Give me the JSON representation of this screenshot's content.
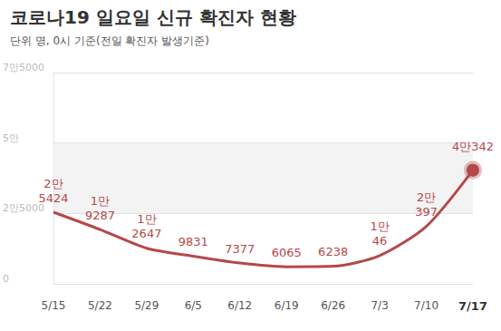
{
  "chart_data": {
    "type": "line",
    "title": "코로나19 일요일 신규 확진자 현황",
    "subtitle": "단위 명, 0시 기준(전일 확진자 발생기준)",
    "categories": [
      "5/15",
      "5/22",
      "5/29",
      "6/5",
      "6/12",
      "6/19",
      "6/26",
      "7/3",
      "7/10",
      "7/17"
    ],
    "values": [
      25424,
      19287,
      12647,
      9831,
      7377,
      6065,
      6238,
      10046,
      20397,
      40342
    ],
    "value_labels": [
      "2만\n5424",
      "1만\n9287",
      "1만\n2647",
      "9831",
      "7377",
      "6065",
      "6238",
      "1만\n46",
      "2만\n397",
      "4만342"
    ],
    "color": "#b5484a",
    "ylim": [
      0,
      75000
    ],
    "yticks": [
      0,
      {
        "value": 25000,
        "label": "2만5000"
      },
      {
        "value": 50000,
        "label": "5만"
      },
      {
        "value": 75000,
        "label": "7만5000"
      }
    ],
    "grid": true,
    "data_labels": true
  }
}
